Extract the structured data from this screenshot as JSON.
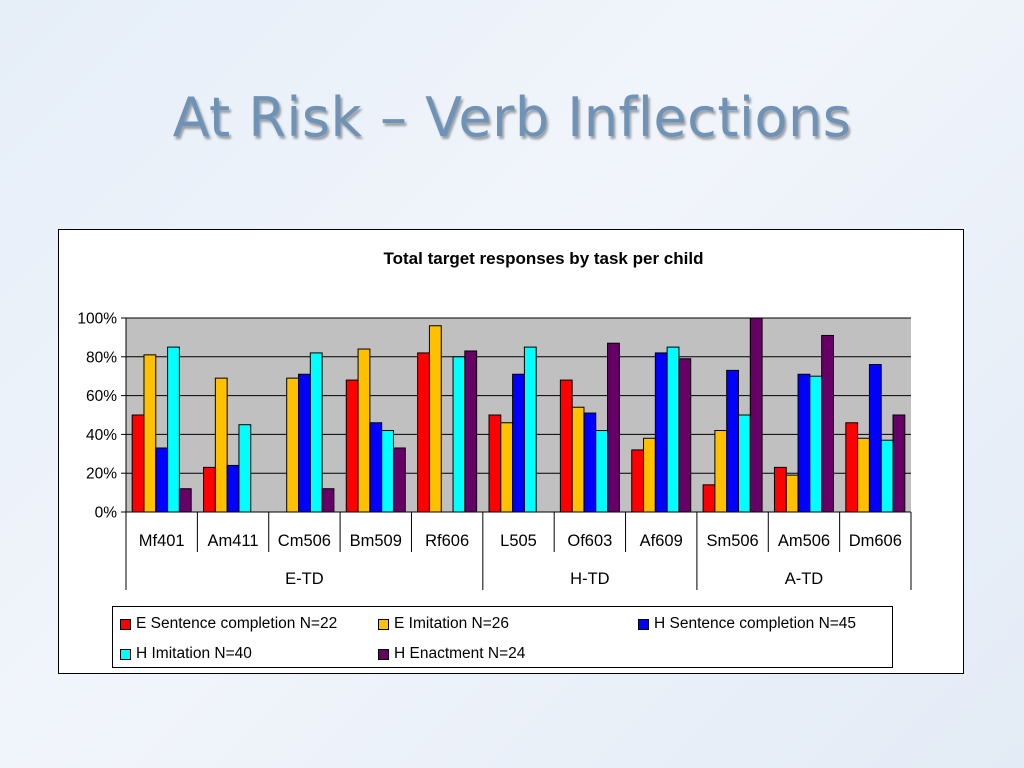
{
  "slide": {
    "title": "At Risk – Verb Inflections"
  },
  "chart_data": {
    "type": "bar",
    "title": "Total target responses by task per child",
    "xlabel": "",
    "ylabel": "",
    "ylim": [
      0,
      100
    ],
    "yticks": [
      "0%",
      "20%",
      "40%",
      "60%",
      "80%",
      "100%"
    ],
    "y_format": "percent",
    "grid": true,
    "legend_position": "bottom",
    "categories": [
      "Mf401",
      "Am411",
      "Cm506",
      "Bm509",
      "Rf606",
      "L505",
      "Of603",
      "Af609",
      "Sm506",
      "Am506",
      "Dm606"
    ],
    "groups": [
      {
        "label": "E-TD",
        "span": 5
      },
      {
        "label": "H-TD",
        "span": 3
      },
      {
        "label": "A-TD",
        "span": 3
      }
    ],
    "series": [
      {
        "name": "E Sentence completion N=22",
        "color": "#ff0000",
        "values": [
          50,
          23,
          null,
          68,
          82,
          50,
          68,
          32,
          14,
          23,
          46
        ]
      },
      {
        "name": "E Imitation N=26",
        "color": "#ffc000",
        "values": [
          81,
          69,
          69,
          84,
          96,
          46,
          54,
          38,
          42,
          19,
          38
        ]
      },
      {
        "name": "H Sentence completion N=45",
        "color": "#0000ff",
        "values": [
          33,
          24,
          71,
          46,
          null,
          71,
          51,
          82,
          73,
          71,
          76
        ]
      },
      {
        "name": "H Imitation N=40",
        "color": "#00ffff",
        "values": [
          85,
          45,
          82,
          42,
          80,
          85,
          42,
          85,
          50,
          70,
          37
        ]
      },
      {
        "name": "H Enactment N=24",
        "color": "#660066",
        "values": [
          12,
          null,
          12,
          33,
          83,
          null,
          87,
          79,
          100,
          91,
          50
        ]
      }
    ]
  }
}
